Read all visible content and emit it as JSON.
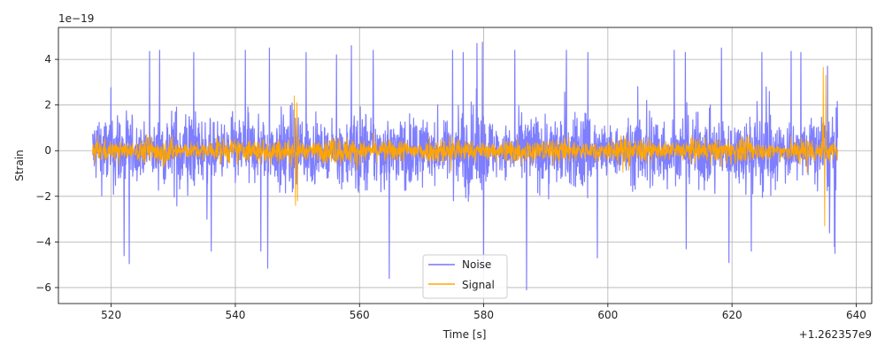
{
  "chart_data": {
    "type": "line",
    "title": "",
    "xlabel": "Time [s]",
    "ylabel": "Strain",
    "x_offset_label": "+1.262357e9",
    "y_scale_label": "1e−19",
    "xlim": [
      511.5,
      642.5
    ],
    "ylim": [
      -6.7,
      5.4
    ],
    "x_ticks": [
      520,
      540,
      560,
      580,
      600,
      620,
      640
    ],
    "x_tick_labels": [
      "520",
      "540",
      "560",
      "580",
      "600",
      "620",
      "640"
    ],
    "y_ticks": [
      -6,
      -4,
      -2,
      0,
      2,
      4
    ],
    "y_tick_labels": [
      "−6",
      "−4",
      "−2",
      "0",
      "2",
      "4"
    ],
    "grid": true,
    "legend_position": "lower center",
    "x_range": [
      517,
      637
    ],
    "series": [
      {
        "name": "Noise",
        "color": "#7777ff",
        "envelope_amplitude": 2.5,
        "peaks": [
          {
            "x": 522.1,
            "y": -4.6
          },
          {
            "x": 522.9,
            "y": 4.3
          },
          {
            "x": 522.9,
            "y": -4.95
          },
          {
            "x": 526.2,
            "y": 4.35
          },
          {
            "x": 527.8,
            "y": 4.4
          },
          {
            "x": 533.3,
            "y": 4.3
          },
          {
            "x": 535.4,
            "y": -3.0
          },
          {
            "x": 536.1,
            "y": -4.4
          },
          {
            "x": 541.6,
            "y": 4.4
          },
          {
            "x": 544.1,
            "y": -4.4
          },
          {
            "x": 545.2,
            "y": -5.15
          },
          {
            "x": 545.5,
            "y": 4.5
          },
          {
            "x": 551.4,
            "y": 4.3
          },
          {
            "x": 556.3,
            "y": 4.2
          },
          {
            "x": 558.7,
            "y": 4.6
          },
          {
            "x": 562.2,
            "y": 4.4
          },
          {
            "x": 564.8,
            "y": -5.6
          },
          {
            "x": 575.0,
            "y": 4.4
          },
          {
            "x": 576.7,
            "y": 4.3
          },
          {
            "x": 578.9,
            "y": 4.7
          },
          {
            "x": 579.8,
            "y": 4.75
          },
          {
            "x": 580.0,
            "y": -5.3
          },
          {
            "x": 585.0,
            "y": 4.4
          },
          {
            "x": 586.9,
            "y": -6.1
          },
          {
            "x": 593.3,
            "y": 4.4
          },
          {
            "x": 596.8,
            "y": 4.3
          },
          {
            "x": 598.3,
            "y": -4.7
          },
          {
            "x": 610.7,
            "y": 4.4
          },
          {
            "x": 612.6,
            "y": -4.3
          },
          {
            "x": 612.5,
            "y": 4.3
          },
          {
            "x": 618.3,
            "y": 4.5
          },
          {
            "x": 619.5,
            "y": -4.9
          },
          {
            "x": 623.1,
            "y": -4.4
          },
          {
            "x": 624.8,
            "y": 4.3
          },
          {
            "x": 629.5,
            "y": 4.35
          },
          {
            "x": 631.1,
            "y": 4.3
          },
          {
            "x": 635.4,
            "y": 3.7
          },
          {
            "x": 635.7,
            "y": -3.6
          },
          {
            "x": 636.5,
            "y": -4.2
          },
          {
            "x": 636.6,
            "y": -4.5
          }
        ]
      },
      {
        "name": "Signal",
        "color": "#ffa500",
        "envelope_amplitude": 0.8,
        "peaks": [
          {
            "x": 549.5,
            "y": 2.4
          },
          {
            "x": 549.7,
            "y": -2.4
          },
          {
            "x": 549.9,
            "y": 2.1
          },
          {
            "x": 550.0,
            "y": -2.2
          },
          {
            "x": 634.7,
            "y": 3.65
          },
          {
            "x": 634.9,
            "y": -3.3
          },
          {
            "x": 635.1,
            "y": 3.3
          },
          {
            "x": 634.6,
            "y": 1.2
          }
        ]
      }
    ]
  }
}
